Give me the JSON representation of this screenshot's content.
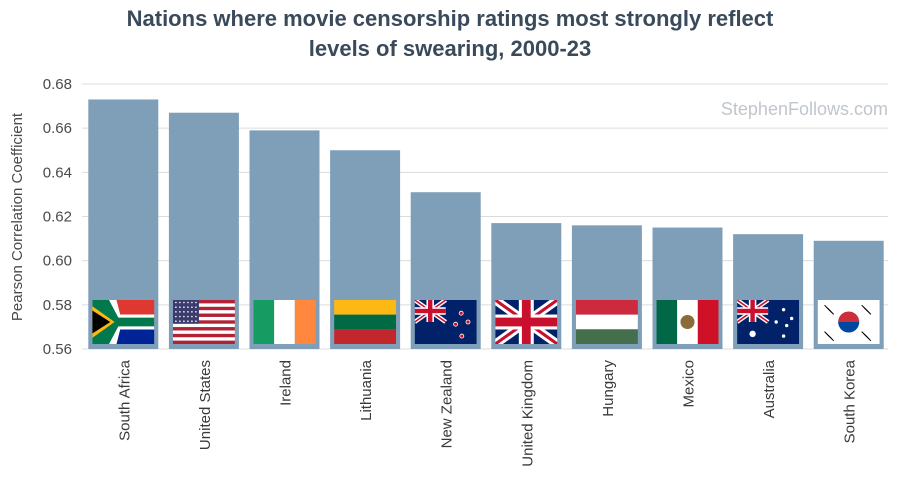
{
  "chart_data": {
    "type": "bar",
    "title_line1": "Nations where movie censorship ratings most strongly reflect",
    "title_line2": "levels of swearing, 2000-23",
    "ylabel": "Pearson Correlation Coefficient",
    "watermark": "StephenFollows.com",
    "ylim": [
      0.56,
      0.68
    ],
    "yticks": [
      "0.56",
      "0.58",
      "0.60",
      "0.62",
      "0.64",
      "0.66",
      "0.68"
    ],
    "categories": [
      "South Africa",
      "United States",
      "Ireland",
      "Lithuania",
      "New Zealand",
      "United Kingdom",
      "Hungary",
      "Mexico",
      "Australia",
      "South Korea"
    ],
    "values": [
      0.673,
      0.667,
      0.659,
      0.65,
      0.631,
      0.617,
      0.616,
      0.615,
      0.612,
      0.609
    ],
    "bar_color": "#7f9fb8",
    "grid": true
  }
}
